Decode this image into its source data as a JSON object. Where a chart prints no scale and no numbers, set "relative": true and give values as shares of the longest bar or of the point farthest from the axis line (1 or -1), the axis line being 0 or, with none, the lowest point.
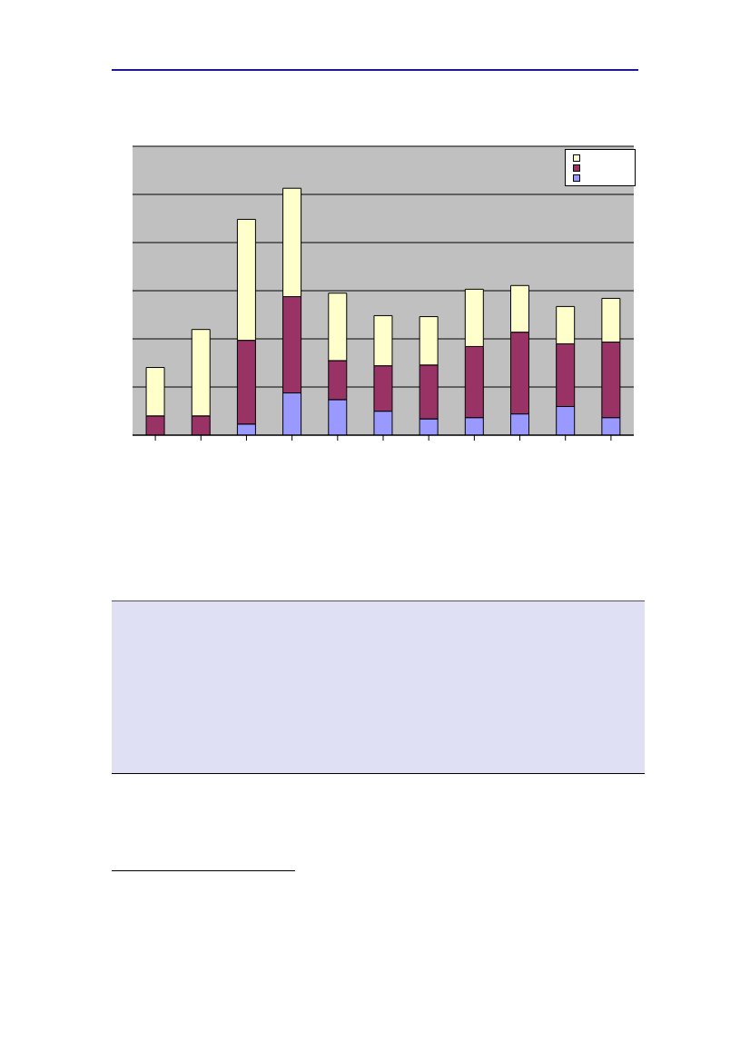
{
  "chart_data": {
    "type": "bar",
    "stacked": true,
    "relative": true,
    "categories": [
      null,
      null,
      null,
      null,
      null,
      null,
      null,
      null,
      null,
      null,
      null
    ],
    "series": [
      {
        "color": "#9999ff",
        "values": [
          0,
          0,
          0.045,
          0.171,
          0.144,
          0.097,
          0.066,
          0.071,
          0.086,
          0.116,
          0.071
        ]
      },
      {
        "color": "#993366",
        "values": [
          0.078,
          0.078,
          0.339,
          0.39,
          0.158,
          0.184,
          0.218,
          0.288,
          0.331,
          0.254,
          0.306
        ]
      },
      {
        "color": "#ffffcc",
        "values": [
          0.196,
          0.35,
          0.49,
          0.439,
          0.273,
          0.203,
          0.196,
          0.232,
          0.189,
          0.151,
          0.177
        ]
      }
    ],
    "grid": "y"
  }
}
